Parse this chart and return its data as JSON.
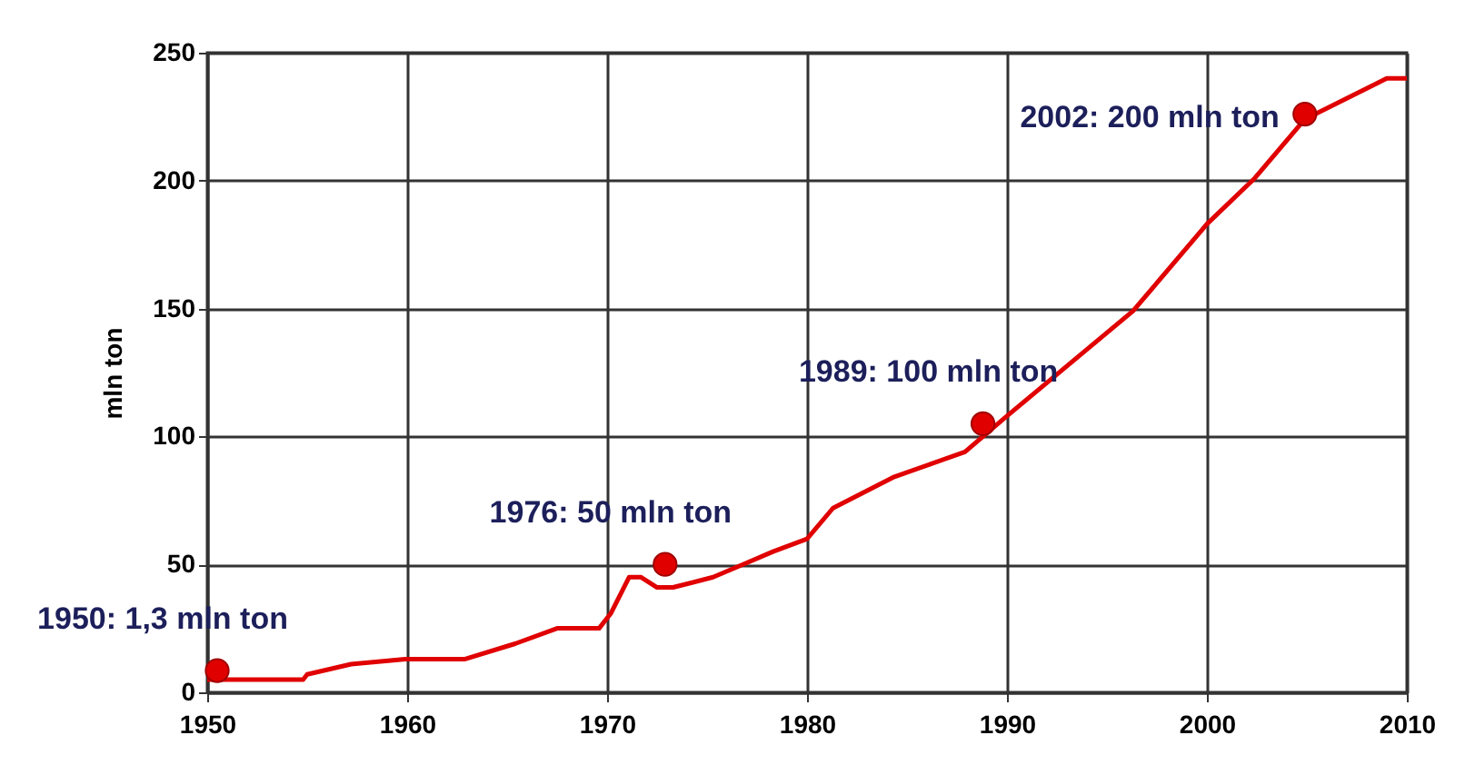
{
  "chart_data": {
    "type": "line",
    "ylabel": "mln ton",
    "xlim": [
      1950,
      2010
    ],
    "xticks": [
      1950,
      1960,
      1970,
      1980,
      1990,
      2000,
      2010
    ],
    "ylim": [
      0,
      250
    ],
    "yticks": [
      0,
      50,
      100,
      150,
      200,
      250
    ],
    "grid": true,
    "series": [
      {
        "color": "#e00000",
        "x": [
          1950,
          1954.8,
          1955,
          1957.2,
          1959.9,
          1962.9,
          1965.4,
          1967.5,
          1969.6,
          1970.2,
          1971.1,
          1971.7,
          1972.5,
          1973.3,
          1975.3,
          1976.8,
          1978.3,
          1980,
          1981.3,
          1984.3,
          1987.9,
          1990,
          1996.3,
          2000,
          2002.4,
          2004.9,
          2008.5,
          2009,
          2010
        ],
        "values": [
          5,
          5,
          7,
          11,
          13,
          13,
          19,
          25,
          25,
          31,
          45,
          45,
          41,
          41,
          45,
          50,
          55,
          60,
          72,
          84,
          94,
          108,
          149,
          183,
          201,
          224,
          238,
          240,
          240
        ]
      },
      {
        "type": "scatter",
        "color": "#e00000",
        "marker": "circle",
        "x": [
          1950.5,
          1972.9,
          1988.8,
          2004.9
        ],
        "values": [
          8.5,
          50,
          105,
          226
        ]
      }
    ],
    "annotations": [
      {
        "text": "1950: 1,3 mln ton",
        "x": 1950.5,
        "y": 8.5
      },
      {
        "text": "1976: 50 mln ton",
        "x": 1972.9,
        "y": 50
      },
      {
        "text": "1989: 100 mln ton",
        "x": 1988.8,
        "y": 105
      },
      {
        "text": "2002: 200 mln ton",
        "x": 2004.9,
        "y": 226
      }
    ]
  }
}
